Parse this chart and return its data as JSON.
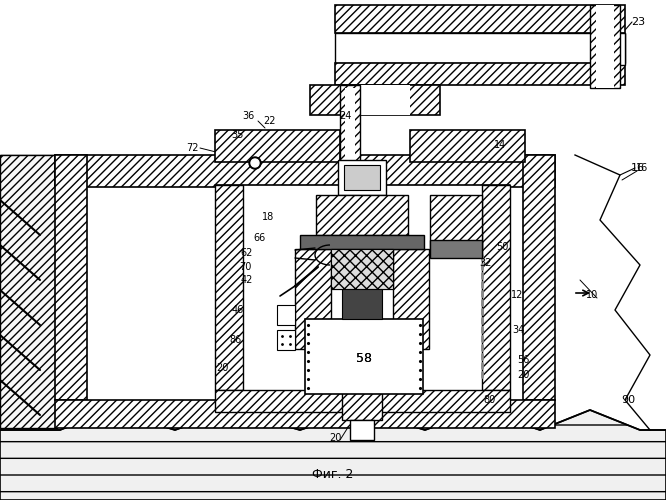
{
  "title": "Фиг. 2",
  "bg_color": "#ffffff",
  "fig_w": 6.66,
  "fig_h": 5.0,
  "dpi": 100
}
